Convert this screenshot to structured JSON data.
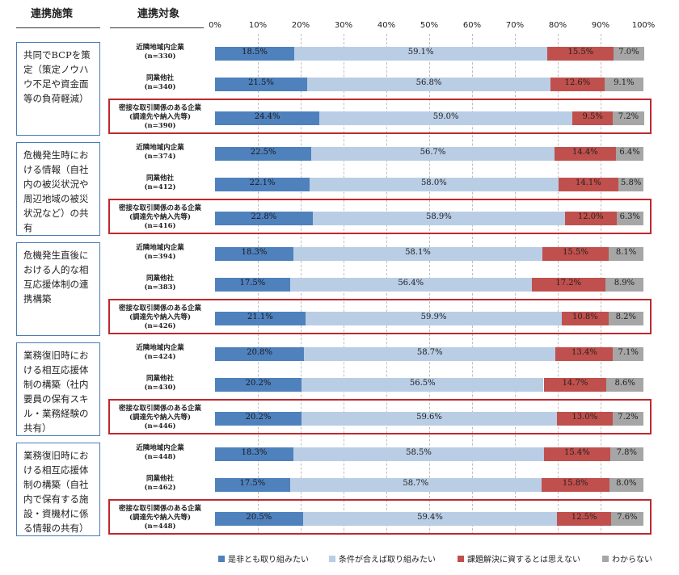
{
  "headers": {
    "policy": "連携施策",
    "target": "連携対象"
  },
  "colors": {
    "yes": "#4f81bd",
    "conditional": "#b9cde5",
    "no": "#c0504d",
    "unknown": "#a6a6a6"
  },
  "chart_data": {
    "type": "bar",
    "orientation": "horizontal-stacked-100",
    "xlim": [
      0,
      100
    ],
    "x_ticks": [
      "0%",
      "10%",
      "20%",
      "30%",
      "40%",
      "50%",
      "60%",
      "70%",
      "80%",
      "90%",
      "100%"
    ],
    "legend": [
      {
        "key": "yes",
        "label": "是非とも取り組みたい"
      },
      {
        "key": "conditional",
        "label": "条件が合えば取り組みたい"
      },
      {
        "key": "no",
        "label": "課題解決に資するとは思えない"
      },
      {
        "key": "unknown",
        "label": "わからない"
      }
    ],
    "groups": [
      {
        "policy": "共同でBCPを策定（策定ノウハウ不足や資金面等の負荷軽減）",
        "rows": [
          {
            "label": [
              "近隣地域内企業",
              "(n=330)"
            ],
            "values": [
              18.5,
              59.1,
              15.5,
              7.0
            ],
            "highlight": false
          },
          {
            "label": [
              "同業他社",
              "(n=340)"
            ],
            "values": [
              21.5,
              56.8,
              12.6,
              9.1
            ],
            "highlight": false
          },
          {
            "label": [
              "密接な取引関係のある企業",
              "(調達先や納入先等)",
              "(n=390)"
            ],
            "values": [
              24.4,
              59.0,
              9.5,
              7.2
            ],
            "highlight": true
          }
        ]
      },
      {
        "policy": "危機発生時における情報（自社内の被災状況や周辺地域の被災状況など）の共有",
        "rows": [
          {
            "label": [
              "近隣地域内企業",
              "(n=374)"
            ],
            "values": [
              22.5,
              56.7,
              14.4,
              6.4
            ],
            "highlight": false
          },
          {
            "label": [
              "同業他社",
              "(n=412)"
            ],
            "values": [
              22.1,
              58.0,
              14.1,
              5.8
            ],
            "highlight": false
          },
          {
            "label": [
              "密接な取引関係のある企業",
              "(調達先や納入先等)",
              "(n=416)"
            ],
            "values": [
              22.8,
              58.9,
              12.0,
              6.3
            ],
            "highlight": true
          }
        ]
      },
      {
        "policy": "危機発生直後における人的な相互応援体制の連携構築",
        "rows": [
          {
            "label": [
              "近隣地域内企業",
              "(n=394)"
            ],
            "values": [
              18.3,
              58.1,
              15.5,
              8.1
            ],
            "highlight": false
          },
          {
            "label": [
              "同業他社",
              "(n=383)"
            ],
            "values": [
              17.5,
              56.4,
              17.2,
              8.9
            ],
            "highlight": false
          },
          {
            "label": [
              "密接な取引関係のある企業",
              "(調達先や納入先等)",
              "(n=426)"
            ],
            "values": [
              21.1,
              59.9,
              10.8,
              8.2
            ],
            "highlight": true
          }
        ]
      },
      {
        "policy": "業務復旧時における相互応援体制の構築（社内要員の保有スキル・業務経験の共有）",
        "rows": [
          {
            "label": [
              "近隣地域内企業",
              "(n=424)"
            ],
            "values": [
              20.8,
              58.7,
              13.4,
              7.1
            ],
            "highlight": false
          },
          {
            "label": [
              "同業他社",
              "(n=430)"
            ],
            "values": [
              20.2,
              56.5,
              14.7,
              8.6
            ],
            "highlight": false
          },
          {
            "label": [
              "密接な取引関係のある企業",
              "(調達先や納入先等)",
              "(n=446)"
            ],
            "values": [
              20.2,
              59.6,
              13.0,
              7.2
            ],
            "highlight": true
          }
        ]
      },
      {
        "policy": "業務復旧時における相互応援体制の構築（自社内で保有する施設・資機材に係る情報の共有）",
        "rows": [
          {
            "label": [
              "近隣地域内企業",
              "(n=448)"
            ],
            "values": [
              18.3,
              58.5,
              15.4,
              7.8
            ],
            "highlight": false
          },
          {
            "label": [
              "同業他社",
              "(n=462)"
            ],
            "values": [
              17.5,
              58.7,
              15.8,
              8.0
            ],
            "highlight": false
          },
          {
            "label": [
              "密接な取引関係のある企業",
              "(調達先や納入先等)",
              "(n=448)"
            ],
            "values": [
              20.5,
              59.4,
              12.5,
              7.6
            ],
            "highlight": true
          }
        ]
      }
    ]
  }
}
